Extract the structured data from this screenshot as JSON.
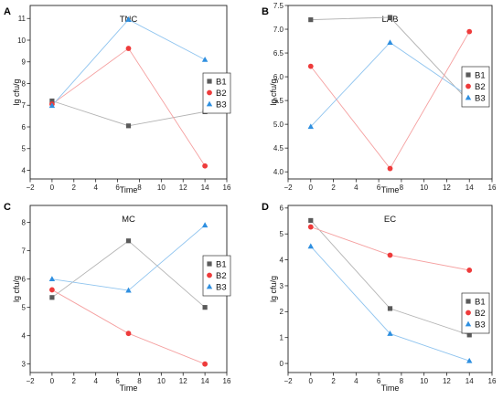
{
  "chart_data": [
    {
      "panel_label": "A",
      "type": "line",
      "title": "TNC",
      "xlabel": "Time",
      "ylabel": "lg cfu/g",
      "xlim": [
        -2,
        16
      ],
      "ylim": [
        3.6,
        11.6
      ],
      "xticks": [
        -2,
        0,
        2,
        4,
        6,
        8,
        10,
        12,
        14,
        16
      ],
      "yticks": [
        4,
        5,
        6,
        7,
        8,
        9,
        10,
        11
      ],
      "legend_position": "right",
      "x": [
        0,
        7,
        14
      ],
      "series": [
        {
          "name": "B1",
          "values": [
            7.2,
            6.05,
            6.7
          ],
          "color": "#5a5a5a",
          "line_color": "#b3b3b3",
          "marker": "square"
        },
        {
          "name": "B2",
          "values": [
            7.05,
            9.62,
            4.2
          ],
          "color": "#ee3b3b",
          "line_color": "#f5a0a0",
          "marker": "circle"
        },
        {
          "name": "B3",
          "values": [
            6.98,
            10.95,
            9.1
          ],
          "color": "#2e8fe0",
          "line_color": "#8fc4ef",
          "marker": "triangle"
        }
      ]
    },
    {
      "panel_label": "B",
      "type": "line",
      "title": "LAB",
      "xlabel": "Time",
      "ylabel": "lg cfu/g",
      "xlim": [
        -2,
        16
      ],
      "ylim": [
        3.85,
        7.5
      ],
      "xticks": [
        -2,
        0,
        2,
        4,
        6,
        8,
        10,
        12,
        14,
        16
      ],
      "yticks": [
        4.0,
        4.5,
        5.0,
        5.5,
        6.0,
        6.5,
        7.0,
        7.5
      ],
      "legend_position": "right",
      "x": [
        0,
        7,
        14
      ],
      "series": [
        {
          "name": "B1",
          "values": [
            7.2,
            7.25,
            5.47
          ],
          "color": "#5a5a5a",
          "line_color": "#b3b3b3",
          "marker": "square"
        },
        {
          "name": "B2",
          "values": [
            6.22,
            4.07,
            6.95
          ],
          "color": "#ee3b3b",
          "line_color": "#f5a0a0",
          "marker": "circle"
        },
        {
          "name": "B3",
          "values": [
            4.95,
            6.72,
            5.58
          ],
          "color": "#2e8fe0",
          "line_color": "#8fc4ef",
          "marker": "triangle"
        }
      ]
    },
    {
      "panel_label": "C",
      "type": "line",
      "title": "MC",
      "xlabel": "Time",
      "ylabel": "lg cfu/g",
      "xlim": [
        -2,
        16
      ],
      "ylim": [
        2.7,
        8.6
      ],
      "xticks": [
        -2,
        0,
        2,
        4,
        6,
        8,
        10,
        12,
        14,
        16
      ],
      "yticks": [
        3,
        4,
        5,
        6,
        7,
        8
      ],
      "legend_position": "right",
      "x": [
        0,
        7,
        14
      ],
      "series": [
        {
          "name": "B1",
          "values": [
            5.35,
            7.35,
            5.0
          ],
          "color": "#5a5a5a",
          "line_color": "#b3b3b3",
          "marker": "square"
        },
        {
          "name": "B2",
          "values": [
            5.62,
            4.08,
            3.0
          ],
          "color": "#ee3b3b",
          "line_color": "#f5a0a0",
          "marker": "circle"
        },
        {
          "name": "B3",
          "values": [
            6.0,
            5.6,
            7.9
          ],
          "color": "#2e8fe0",
          "line_color": "#8fc4ef",
          "marker": "triangle"
        }
      ]
    },
    {
      "panel_label": "D",
      "type": "line",
      "title": "EC",
      "xlabel": "Time",
      "ylabel": "lg cfu/g",
      "xlim": [
        -2,
        16
      ],
      "ylim": [
        -0.35,
        6.1
      ],
      "xticks": [
        -2,
        0,
        2,
        4,
        6,
        8,
        10,
        12,
        14,
        16
      ],
      "yticks": [
        0,
        1,
        2,
        3,
        4,
        5,
        6
      ],
      "legend_position": "right",
      "x": [
        0,
        7,
        14
      ],
      "series": [
        {
          "name": "B1",
          "values": [
            5.52,
            2.12,
            1.1
          ],
          "color": "#5a5a5a",
          "line_color": "#b3b3b3",
          "marker": "square"
        },
        {
          "name": "B2",
          "values": [
            5.27,
            4.18,
            3.6
          ],
          "color": "#ee3b3b",
          "line_color": "#f5a0a0",
          "marker": "circle"
        },
        {
          "name": "B3",
          "values": [
            4.52,
            1.15,
            0.1
          ],
          "color": "#2e8fe0",
          "line_color": "#8fc4ef",
          "marker": "triangle"
        }
      ]
    }
  ]
}
